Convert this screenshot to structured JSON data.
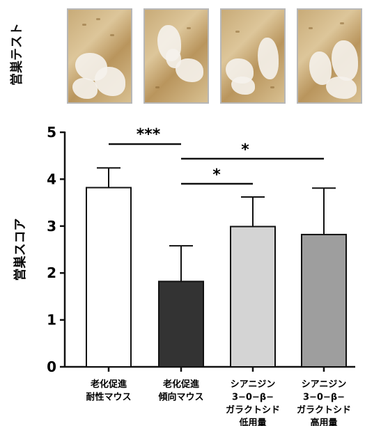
{
  "photo_panel": {
    "side_label": "営巣テスト",
    "photo_count": 4
  },
  "chart_data": {
    "type": "bar",
    "ylabel": "営巣スコア",
    "ylim": [
      0,
      5
    ],
    "yticks": [
      "0",
      "1",
      "2",
      "3",
      "4",
      "5"
    ],
    "categories": [
      [
        "老化促進",
        "耐性マウス"
      ],
      [
        "老化促進",
        "傾向マウス"
      ],
      [
        "シアニジン",
        "3−0−β−",
        "ガラクトシド",
        "低用量"
      ],
      [
        "シアニジン",
        "3−0−β−",
        "ガラクトシド",
        "高用量"
      ]
    ],
    "values": [
      3.82,
      1.82,
      2.99,
      2.82
    ],
    "error_upper": [
      4.24,
      2.58,
      3.62,
      3.81
    ],
    "bar_colors": [
      "#ffffff",
      "#333333",
      "#d4d4d4",
      "#9e9e9e"
    ],
    "significance": [
      {
        "from": 0,
        "to": 1,
        "label": "***"
      },
      {
        "from": 1,
        "to": 3,
        "label": "*"
      },
      {
        "from": 1,
        "to": 2,
        "label": "*"
      }
    ]
  }
}
